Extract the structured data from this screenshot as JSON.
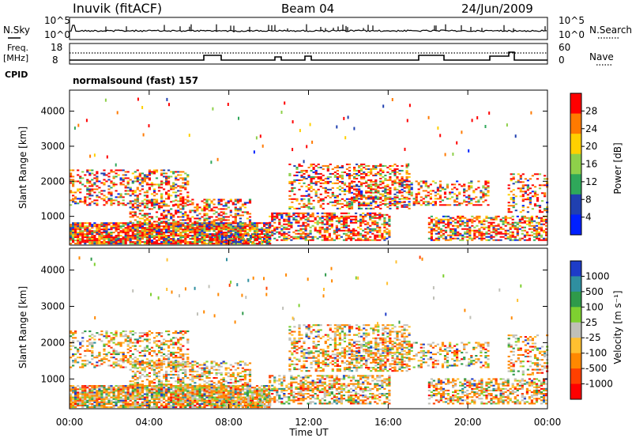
{
  "header": {
    "station": "Inuvik (fitACF)",
    "beam": "Beam 04",
    "date": "24/Jun/2009"
  },
  "noise_panel": {
    "left_label": "N.Sky",
    "right_label": "N.Search",
    "left_ticks": [
      "10^5",
      "10^0"
    ],
    "right_ticks": [
      "10^5",
      "10^0"
    ]
  },
  "freq_panel": {
    "left_label_1": "Freq.",
    "left_label_2": "[MHz]",
    "left_ticks": [
      "18",
      "8"
    ],
    "right_label": "Nave",
    "right_ticks": [
      "60",
      "0"
    ],
    "cpid_label": "CPID"
  },
  "cpid_text": "normalsound (fast) 157",
  "chart_data": [
    {
      "type": "heatmap",
      "title": "",
      "xlabel": "",
      "ylabel": "Slant Range [km]",
      "x_ticks": [
        "00:00",
        "04:00",
        "08:00",
        "12:00",
        "16:00",
        "20:00",
        "00:00"
      ],
      "y_ticks": [
        1000,
        2000,
        3000,
        4000
      ],
      "ylim": [
        180,
        4600
      ],
      "colorbar_label": "Power [dB]",
      "colorbar_ticks": [
        "28",
        "24",
        "20",
        "16",
        "12",
        "8",
        "4"
      ],
      "colorbar_colors": [
        "#ff0000",
        "#ff7a00",
        "#ffd000",
        "#8ed04a",
        "#2fa85a",
        "#2040b0",
        "#0020ff"
      ]
    },
    {
      "type": "heatmap",
      "title": "",
      "xlabel": "Time UT",
      "ylabel": "Slant Range [km]",
      "x_ticks": [
        "00:00",
        "04:00",
        "08:00",
        "12:00",
        "16:00",
        "20:00",
        "00:00"
      ],
      "y_ticks": [
        1000,
        2000,
        3000,
        4000
      ],
      "ylim": [
        180,
        4600
      ],
      "colorbar_label": "Velocity [m s⁻¹]",
      "colorbar_ticks": [
        "1000",
        "500",
        "100",
        "25",
        "-25",
        "-100",
        "-500",
        "-1000"
      ],
      "colorbar_colors": [
        "#1e3cc8",
        "#2f8fa0",
        "#2f9a4a",
        "#7ed030",
        "#c0c0b8",
        "#ffc030",
        "#ff8800",
        "#ff4000",
        "#ff0000"
      ]
    }
  ]
}
